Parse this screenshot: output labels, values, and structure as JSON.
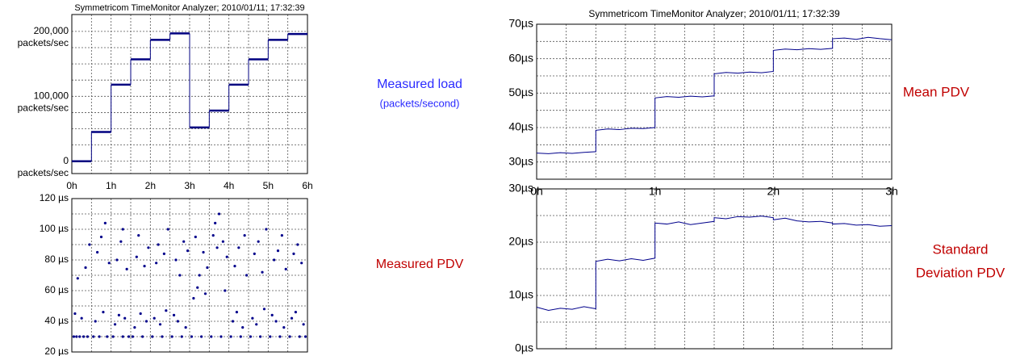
{
  "chart_data": [
    {
      "type": "step",
      "title": "Symmetricom TimeMonitor Analyzer;  2010/01/11; 17:32:39",
      "x": [
        0,
        0.5,
        1,
        1.5,
        2,
        2.5,
        3,
        3.5,
        4,
        4.5,
        5,
        5.5
      ],
      "values": [
        0,
        45000,
        118000,
        157000,
        187000,
        197000,
        52000,
        78000,
        118000,
        157000,
        187000,
        196000
      ],
      "color": "#000080",
      "xlim": [
        0,
        6
      ],
      "xticks": [
        {
          "value": 0,
          "label": "0h"
        },
        {
          "value": 1,
          "label": "1h"
        },
        {
          "value": 2,
          "label": "2h"
        },
        {
          "value": 3,
          "label": "3h"
        },
        {
          "value": 4,
          "label": "4h"
        },
        {
          "value": 5,
          "label": "5h"
        },
        {
          "value": 6,
          "label": "6h"
        }
      ],
      "ylim": [
        -19000,
        226000
      ],
      "yticks": [
        0,
        {
          "value": 100000,
          "label": "100,000"
        },
        {
          "value": 200000,
          "label": "200,000"
        }
      ],
      "y_unit": "packets/sec",
      "grid": true,
      "minor_grid": {
        "x": 2,
        "y": 4
      },
      "annotations": [
        "Measured load",
        "(packets/second)"
      ],
      "annotation_color": "#2a2aff"
    },
    {
      "type": "scatter",
      "x": [
        0.05,
        0.12,
        0.2,
        0.3,
        0.4,
        0.08,
        0.25,
        0.35,
        0.45,
        0.15,
        0.55,
        0.7,
        0.9,
        0.6,
        0.8,
        0.65,
        0.75,
        0.95,
        0.85,
        1.05,
        1.3,
        1.45,
        1.1,
        1.2,
        1.35,
        1.15,
        1.25,
        1.4,
        1.3,
        1.55,
        1.8,
        1.6,
        1.75,
        1.9,
        1.65,
        1.7,
        1.85,
        1.95,
        2.05,
        2.3,
        2.1,
        2.25,
        2.4,
        2.15,
        2.2,
        2.35,
        2.45,
        2.55,
        2.8,
        2.6,
        2.7,
        2.9,
        2.65,
        2.75,
        2.85,
        2.95,
        3.05,
        3.3,
        3.1,
        3.2,
        3.25,
        3.35,
        3.4,
        3.45,
        3.15,
        3.55,
        3.8,
        3.6,
        3.65,
        3.7,
        3.75,
        3.85,
        3.9,
        3.95,
        4.05,
        4.3,
        4.1,
        4.2,
        4.35,
        4.15,
        4.25,
        4.4,
        4.45,
        4.55,
        4.8,
        4.6,
        4.7,
        4.9,
        4.65,
        4.75,
        4.85,
        4.95,
        5.05,
        5.3,
        5.1,
        5.2,
        5.4,
        5.15,
        5.25,
        5.35,
        5.45,
        5.55,
        5.8,
        5.95,
        5.6,
        5.7,
        5.9,
        5.65,
        5.75,
        5.85
      ],
      "values": [
        30,
        30,
        30,
        30,
        30,
        45,
        42,
        75,
        90,
        68,
        30,
        30,
        30,
        40,
        46,
        85,
        95,
        78,
        104,
        30,
        30,
        30,
        38,
        44,
        42,
        80,
        92,
        74,
        100,
        30,
        30,
        36,
        45,
        40,
        82,
        96,
        76,
        88,
        30,
        30,
        42,
        38,
        47,
        78,
        90,
        84,
        100,
        30,
        30,
        44,
        40,
        36,
        80,
        70,
        92,
        86,
        30,
        30,
        55,
        62,
        70,
        85,
        58,
        75,
        95,
        30,
        30,
        96,
        104,
        88,
        110,
        92,
        60,
        82,
        30,
        30,
        40,
        46,
        36,
        76,
        88,
        96,
        70,
        30,
        30,
        42,
        38,
        48,
        84,
        92,
        72,
        100,
        30,
        30,
        44,
        40,
        36,
        80,
        86,
        96,
        74,
        30,
        30,
        30,
        42,
        46,
        38,
        84,
        90,
        78
      ],
      "color": "#00008b",
      "xlim": [
        0,
        6
      ],
      "xticks": [
        0,
        1,
        2,
        3,
        4,
        5,
        6
      ],
      "show_xtick_labels": false,
      "ylim": [
        20,
        120
      ],
      "yticks": [
        {
          "value": 20,
          "label": "20 µs"
        },
        {
          "value": 40,
          "label": "40 µs"
        },
        {
          "value": 60,
          "label": "60 µs"
        },
        {
          "value": 80,
          "label": "80 µs"
        },
        {
          "value": 100,
          "label": "100 µs"
        },
        {
          "value": 120,
          "label": "120 µs"
        }
      ],
      "grid": true,
      "minor_grid": {
        "x": 2,
        "y": 2
      },
      "annotations": [
        "Measured PDV"
      ],
      "annotation_color": "#c00000"
    },
    {
      "type": "line",
      "title": "Symmetricom TimeMonitor Analyzer;  2010/01/11; 17:32:39",
      "x": [
        0,
        0.1,
        0.2,
        0.3,
        0.4,
        0.5,
        0.5,
        0.6,
        0.7,
        0.8,
        0.9,
        1.0,
        1.0,
        1.1,
        1.2,
        1.3,
        1.4,
        1.5,
        1.5,
        1.6,
        1.7,
        1.8,
        1.9,
        2.0,
        2.0,
        2.1,
        2.2,
        2.3,
        2.4,
        2.5,
        2.5,
        2.6,
        2.7,
        2.8,
        2.9,
        3.0
      ],
      "values": [
        32.6,
        32.4,
        32.7,
        32.5,
        32.8,
        33.0,
        39.2,
        39.6,
        39.4,
        39.8,
        39.7,
        40.0,
        48.6,
        49.0,
        48.8,
        49.1,
        48.9,
        49.2,
        55.6,
        56.0,
        55.8,
        56.1,
        55.9,
        56.3,
        62.4,
        62.8,
        62.6,
        62.9,
        62.7,
        63.0,
        65.8,
        66.0,
        65.6,
        66.2,
        65.8,
        65.5
      ],
      "color": "#00008b",
      "xlim": [
        0,
        3
      ],
      "xticks": [
        {
          "value": 0,
          "label": "0h"
        },
        {
          "value": 1,
          "label": "1h"
        },
        {
          "value": 2,
          "label": "2h"
        },
        {
          "value": 3,
          "label": "3h"
        }
      ],
      "ylim": [
        25,
        70
      ],
      "yticks": [
        {
          "value": 30,
          "label": "30µs"
        },
        {
          "value": 40,
          "label": "40µs"
        },
        {
          "value": 50,
          "label": "50µs"
        },
        {
          "value": 60,
          "label": "60µs"
        },
        {
          "value": 70,
          "label": "70µs"
        }
      ],
      "grid": true,
      "minor_grid": {
        "x": 4,
        "y": 2
      },
      "annotations": [
        "Mean PDV"
      ],
      "annotation_color": "#c00000"
    },
    {
      "type": "line",
      "x": [
        0,
        0.1,
        0.2,
        0.3,
        0.4,
        0.5,
        0.5,
        0.6,
        0.7,
        0.8,
        0.9,
        1.0,
        1.0,
        1.1,
        1.2,
        1.3,
        1.4,
        1.5,
        1.5,
        1.6,
        1.7,
        1.8,
        1.9,
        2.0,
        2.0,
        2.1,
        2.2,
        2.3,
        2.4,
        2.5,
        2.5,
        2.6,
        2.7,
        2.8,
        2.9,
        3.0
      ],
      "values": [
        7.8,
        7.2,
        7.6,
        7.4,
        7.9,
        7.5,
        16.4,
        16.8,
        16.5,
        16.9,
        16.6,
        17.0,
        23.6,
        23.4,
        23.8,
        23.3,
        23.6,
        23.9,
        24.6,
        24.4,
        24.8,
        24.7,
        24.9,
        24.6,
        24.2,
        24.5,
        24.0,
        23.8,
        23.9,
        23.6,
        23.4,
        23.5,
        23.2,
        23.3,
        23.0,
        23.1
      ],
      "color": "#00008b",
      "xlim": [
        0,
        3
      ],
      "xticks": [
        0,
        1,
        2,
        3
      ],
      "show_xtick_labels": false,
      "ylim": [
        0,
        30
      ],
      "yticks": [
        {
          "value": 0,
          "label": "0µs"
        },
        {
          "value": 10,
          "label": "10µs"
        },
        {
          "value": 20,
          "label": "20µs"
        },
        {
          "value": 30,
          "label": "30µs"
        }
      ],
      "grid": true,
      "minor_grid": {
        "x": 4,
        "y": 2
      },
      "annotations": [
        "Standard",
        "Deviation PDV"
      ],
      "annotation_color": "#c00000"
    }
  ]
}
